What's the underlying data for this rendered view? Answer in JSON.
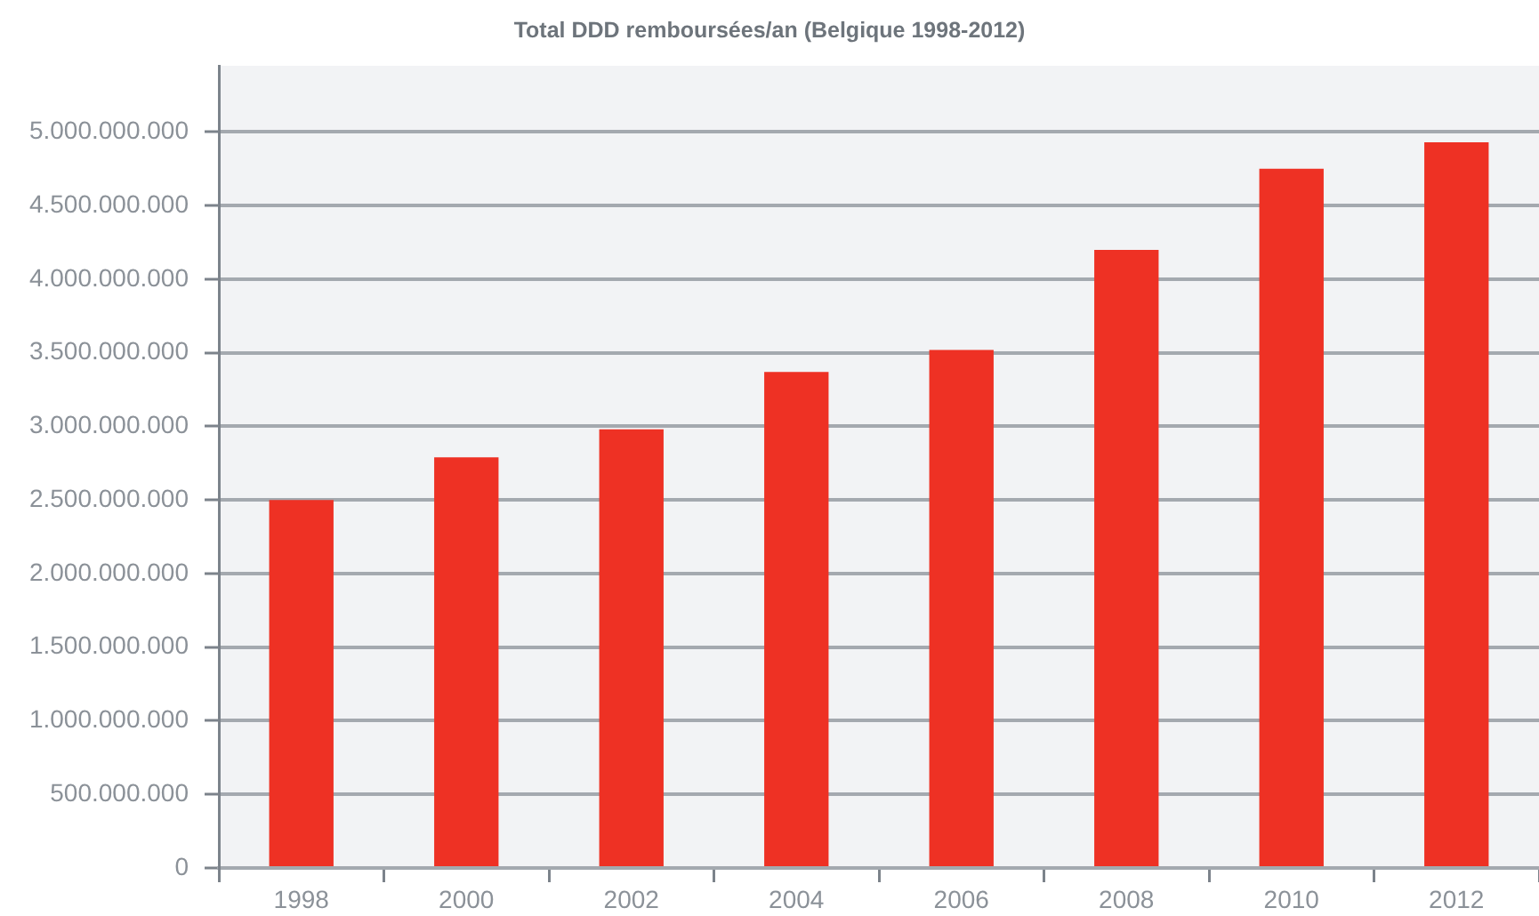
{
  "chart_data": {
    "type": "bar",
    "title": "Total DDD remboursées/an (Belgique 1998-2012)",
    "categories": [
      "1998",
      "2000",
      "2002",
      "2004",
      "2006",
      "2008",
      "2010",
      "2012"
    ],
    "values": [
      2500000000,
      2790000000,
      2980000000,
      3370000000,
      3520000000,
      4200000000,
      4750000000,
      4930000000
    ],
    "color": "#ee3124",
    "ylim": [
      0,
      5450000000
    ],
    "yticks": [
      0,
      {
        "value": 500000000,
        "label": "500.000.000"
      },
      {
        "value": 1000000000,
        "label": "1.000.000.000"
      },
      {
        "value": 1500000000,
        "label": "1.500.000.000"
      },
      {
        "value": 2000000000,
        "label": "2.000.000.000"
      },
      {
        "value": 2500000000,
        "label": "2.500.000.000"
      },
      {
        "value": 3000000000,
        "label": "3.000.000.000"
      },
      {
        "value": 3500000000,
        "label": "3.500.000.000"
      },
      {
        "value": 4000000000,
        "label": "4.000.000.000"
      },
      {
        "value": 4500000000,
        "label": "4.500.000.000"
      },
      {
        "value": 5000000000,
        "label": "5.000.000.000"
      }
    ],
    "grid": "y"
  }
}
